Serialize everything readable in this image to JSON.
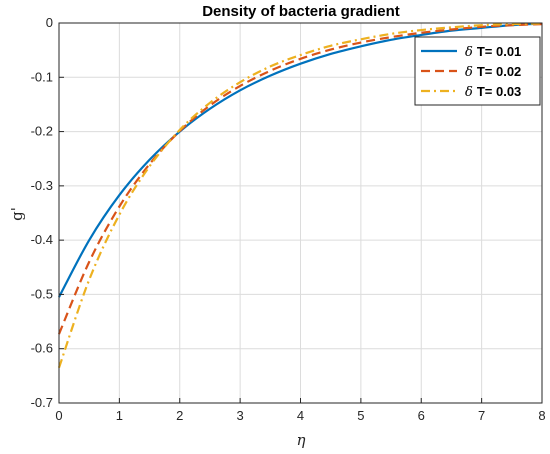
{
  "chart_data": {
    "type": "line",
    "title": "Density of bacteria gradient",
    "xlabel": "η",
    "ylabel": "g'",
    "xlim": [
      0,
      8
    ],
    "ylim": [
      -0.7,
      0
    ],
    "xticks": [
      "0",
      "1",
      "2",
      "3",
      "4",
      "5",
      "6",
      "7",
      "8"
    ],
    "yticks": [
      "0",
      "-0.1",
      "-0.2",
      "-0.3",
      "-0.4",
      "-0.5",
      "-0.6",
      "-0.7"
    ],
    "grid": true,
    "legend_position": "top-right",
    "legend_symbol": "δ",
    "x": [
      0,
      0.5,
      1,
      1.5,
      2,
      2.5,
      3,
      3.5,
      4,
      4.5,
      5,
      5.5,
      6,
      6.5,
      7,
      7.5,
      8
    ],
    "series": [
      {
        "name": "T= 0.01",
        "color": "#0072BD",
        "dash": "solid",
        "values": [
          -0.505,
          -0.4,
          -0.317,
          -0.252,
          -0.2,
          -0.158,
          -0.124,
          -0.097,
          -0.075,
          -0.057,
          -0.043,
          -0.031,
          -0.022,
          -0.014,
          -0.009,
          -0.004,
          -0.001
        ]
      },
      {
        "name": "T= 0.02",
        "color": "#D95319",
        "dash": "dashed",
        "values": [
          -0.573,
          -0.44,
          -0.338,
          -0.26,
          -0.199,
          -0.152,
          -0.116,
          -0.088,
          -0.066,
          -0.049,
          -0.036,
          -0.026,
          -0.018,
          -0.012,
          -0.007,
          -0.004,
          -0.002
        ]
      },
      {
        "name": "T= 0.03",
        "color": "#EDB120",
        "dash": "dashdot",
        "values": [
          -0.635,
          -0.473,
          -0.353,
          -0.264,
          -0.197,
          -0.147,
          -0.109,
          -0.08,
          -0.059,
          -0.042,
          -0.03,
          -0.02,
          -0.013,
          -0.008,
          -0.004,
          -0.002,
          -0.001
        ]
      }
    ]
  }
}
